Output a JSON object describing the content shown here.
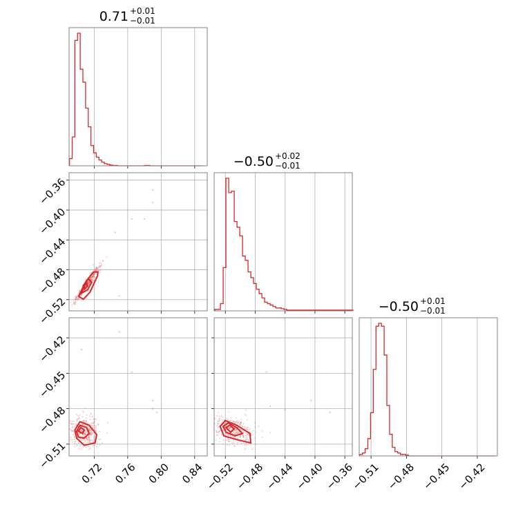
{
  "chart_data": {
    "type": "corner",
    "color": "#d62728",
    "parameters": [
      {
        "title": {
          "median": "0.71",
          "plus": "+0.01",
          "minus": "−0.01"
        },
        "range": [
          0.69,
          0.855
        ],
        "ticks": [
          0.72,
          0.76,
          0.8,
          0.84
        ],
        "tick_labels": [
          "0.72",
          "0.76",
          "0.80",
          "0.84"
        ]
      },
      {
        "title": {
          "median": "−0.50",
          "plus": "+0.02",
          "minus": "−0.01"
        },
        "range": [
          -0.535,
          -0.35
        ],
        "ticks": [
          -0.52,
          -0.48,
          -0.44,
          -0.4,
          -0.36
        ],
        "tick_labels": [
          "−0.52",
          "−0.48",
          "−0.44",
          "−0.40",
          "−0.36"
        ]
      },
      {
        "title": {
          "median": "−0.50",
          "plus": "+0.01",
          "minus": "−0.01"
        },
        "range": [
          -0.52,
          -0.403
        ],
        "ticks": [
          -0.51,
          -0.48,
          -0.45,
          -0.42
        ],
        "tick_labels": [
          "−0.51",
          "−0.48",
          "−0.45",
          "−0.42"
        ]
      }
    ],
    "histograms": [
      {
        "param": 0,
        "bins": [
          0.6905,
          0.6937,
          0.6969,
          0.7001,
          0.7033,
          0.7065,
          0.7097,
          0.7129,
          0.7161,
          0.7193,
          0.7225,
          0.7257,
          0.7289,
          0.7321,
          0.7353,
          0.7385,
          0.7417,
          0.7449,
          0.7481,
          0.7513,
          0.7545,
          0.7577,
          0.7609,
          0.7641,
          0.7673,
          0.7705,
          0.7737,
          0.7769,
          0.7801,
          0.7833,
          0.7865,
          0.7897,
          0.7929,
          0.7961,
          0.7993,
          0.8025,
          0.8057,
          0.8089,
          0.8121,
          0.8153,
          0.8185,
          0.8217,
          0.8249,
          0.8281,
          0.8313,
          0.8345,
          0.8377,
          0.8409,
          0.8441,
          0.8473,
          0.8505
        ],
        "counts": [
          0.05,
          0.2,
          0.87,
          0.92,
          0.67,
          0.58,
          0.4,
          0.27,
          0.14,
          0.09,
          0.06,
          0.04,
          0.025,
          0.015,
          0.01,
          0.005,
          0.002,
          0.002,
          0,
          0,
          0,
          0,
          0,
          0,
          0,
          0,
          0,
          0,
          0.002,
          0.002,
          0,
          0,
          0,
          0,
          0,
          0,
          0,
          0,
          0,
          0,
          0,
          0,
          0,
          0,
          0,
          0,
          0,
          0,
          0,
          0
        ]
      },
      {
        "param": 1,
        "bins": [
          -0.534,
          -0.5303,
          -0.5266,
          -0.5229,
          -0.5192,
          -0.5155,
          -0.5118,
          -0.5081,
          -0.5044,
          -0.5007,
          -0.497,
          -0.4933,
          -0.4896,
          -0.4859,
          -0.4822,
          -0.4785,
          -0.4748,
          -0.4711,
          -0.4674,
          -0.4637,
          -0.46,
          -0.4563,
          -0.4526,
          -0.4489,
          -0.4452,
          -0.4415,
          -0.4378,
          -0.4341,
          -0.4304,
          -0.4267,
          -0.423,
          -0.4193,
          -0.4156,
          -0.4119,
          -0.4082,
          -0.4045,
          -0.4008,
          -0.3971,
          -0.3934,
          -0.3897,
          -0.386,
          -0.3823,
          -0.3786,
          -0.3749,
          -0.3712,
          -0.3675,
          -0.3638,
          -0.3601,
          -0.3564,
          -0.3527,
          -0.349
        ],
        "counts": [
          0.01,
          0.01,
          0.05,
          0.3,
          0.92,
          0.82,
          0.83,
          0.62,
          0.58,
          0.52,
          0.38,
          0.35,
          0.27,
          0.23,
          0.19,
          0.15,
          0.12,
          0.09,
          0.06,
          0.05,
          0.04,
          0.03,
          0.02,
          0.02,
          0.015,
          0.01,
          0.005,
          0.005,
          0.005,
          0.005,
          0.005,
          0.005,
          0.005,
          0.005,
          0.005,
          0.005,
          0.005,
          0.005,
          0.005,
          0.005,
          0.005,
          0.005,
          0.005,
          0.005,
          0.005,
          0.005,
          0.005,
          0.005,
          0.005,
          0.005
        ]
      },
      {
        "param": 2,
        "bins": [
          -0.5196,
          -0.5173,
          -0.515,
          -0.5127,
          -0.5104,
          -0.5081,
          -0.5058,
          -0.5035,
          -0.5012,
          -0.4989,
          -0.4966,
          -0.4943,
          -0.492,
          -0.4897,
          -0.4874,
          -0.4851,
          -0.4828,
          -0.4805,
          -0.4782,
          -0.4759,
          -0.4736,
          -0.4713,
          -0.469,
          -0.4667,
          -0.4644,
          -0.4621,
          -0.4598,
          -0.4575,
          -0.4552,
          -0.4529,
          -0.4506,
          -0.4483,
          -0.446,
          -0.4437,
          -0.4414,
          -0.4391,
          -0.4368,
          -0.4345,
          -0.4322,
          -0.4299,
          -0.4276,
          -0.4253,
          -0.423,
          -0.4207,
          -0.4184,
          -0.4161,
          -0.4138,
          -0.4115,
          -0.4092,
          -0.4069,
          -0.4046
        ],
        "counts": [
          0.01,
          0.02,
          0.05,
          0.12,
          0.3,
          0.6,
          0.9,
          0.92,
          0.9,
          0.7,
          0.35,
          0.15,
          0.06,
          0.03,
          0.02,
          0.01,
          0.01,
          0.005,
          0,
          0,
          0,
          0,
          0,
          0,
          0,
          0,
          0,
          0,
          0,
          0,
          0,
          0,
          0,
          0,
          0,
          0,
          0,
          0,
          0,
          0,
          0,
          0,
          0,
          0,
          0,
          0,
          0,
          0,
          0,
          0,
          0
        ]
      }
    ],
    "joint": [
      {
        "x_param": 0,
        "y_param": 1,
        "center": [
          0.711,
          -0.5
        ],
        "contours": [
          [
            [
              0.7015,
              -0.5155
            ],
            [
              0.707,
              -0.5195
            ],
            [
              0.715,
              -0.51
            ],
            [
              0.724,
              -0.488
            ],
            [
              0.7245,
              -0.483
            ],
            [
              0.719,
              -0.483
            ],
            [
              0.71,
              -0.496
            ],
            [
              0.7015,
              -0.5155
            ]
          ],
          [
            [
              0.705,
              -0.511
            ],
            [
              0.712,
              -0.507
            ],
            [
              0.717,
              -0.497
            ],
            [
              0.713,
              -0.492
            ],
            [
              0.707,
              -0.501
            ],
            [
              0.705,
              -0.511
            ]
          ],
          [
            [
              0.708,
              -0.506
            ],
            [
              0.712,
              -0.502
            ],
            [
              0.711,
              -0.498
            ],
            [
              0.708,
              -0.502
            ],
            [
              0.708,
              -0.506
            ]
          ]
        ],
        "outliers": [
          [
            0.79,
            -0.373
          ],
          [
            0.79,
            -0.39
          ],
          [
            0.765,
            -0.412
          ],
          [
            0.78,
            -0.412
          ],
          [
            0.75,
            -0.515
          ],
          [
            0.745,
            -0.43
          ]
        ]
      },
      {
        "x_param": 0,
        "y_param": 2,
        "center": [
          0.707,
          -0.5
        ],
        "contours": [
          [
            [
              0.697,
              -0.498
            ],
            [
              0.703,
              -0.491
            ],
            [
              0.714,
              -0.494
            ],
            [
              0.723,
              -0.502
            ],
            [
              0.721,
              -0.509
            ],
            [
              0.708,
              -0.511
            ],
            [
              0.699,
              -0.505
            ],
            [
              0.697,
              -0.498
            ]
          ],
          [
            [
              0.699,
              -0.499
            ],
            [
              0.703,
              -0.494
            ],
            [
              0.711,
              -0.496
            ],
            [
              0.714,
              -0.501
            ],
            [
              0.708,
              -0.505
            ],
            [
              0.701,
              -0.504
            ],
            [
              0.699,
              -0.499
            ]
          ],
          [
            [
              0.701,
              -0.499
            ],
            [
              0.704,
              -0.496
            ],
            [
              0.708,
              -0.498
            ],
            [
              0.706,
              -0.501
            ],
            [
              0.701,
              -0.499
            ]
          ]
        ],
        "outliers": [
          [
            0.75,
            -0.415
          ],
          [
            0.765,
            -0.449
          ],
          [
            0.79,
            -0.48
          ],
          [
            0.795,
            -0.483
          ],
          [
            0.79,
            -0.473
          ],
          [
            0.705,
            -0.43
          ]
        ]
      },
      {
        "x_param": 1,
        "y_param": 2,
        "center": [
          -0.513,
          -0.498
        ],
        "contours": [
          [
            [
              -0.527,
              -0.495
            ],
            [
              -0.52,
              -0.49
            ],
            [
              -0.505,
              -0.494
            ],
            [
              -0.487,
              -0.501
            ],
            [
              -0.486,
              -0.509
            ],
            [
              -0.506,
              -0.506
            ],
            [
              -0.522,
              -0.503
            ],
            [
              -0.527,
              -0.495
            ]
          ],
          [
            [
              -0.523,
              -0.495
            ],
            [
              -0.516,
              -0.492
            ],
            [
              -0.505,
              -0.496
            ],
            [
              -0.497,
              -0.501
            ],
            [
              -0.507,
              -0.503
            ],
            [
              -0.519,
              -0.5
            ],
            [
              -0.523,
              -0.495
            ]
          ],
          [
            [
              -0.519,
              -0.496
            ],
            [
              -0.514,
              -0.494
            ],
            [
              -0.508,
              -0.497
            ],
            [
              -0.513,
              -0.5
            ],
            [
              -0.519,
              -0.496
            ]
          ]
        ],
        "outliers": [
          [
            -0.465,
            -0.449
          ],
          [
            -0.405,
            -0.473
          ],
          [
            -0.44,
            -0.481
          ],
          [
            -0.46,
            -0.478
          ],
          [
            -0.38,
            -0.483
          ]
        ]
      }
    ]
  }
}
